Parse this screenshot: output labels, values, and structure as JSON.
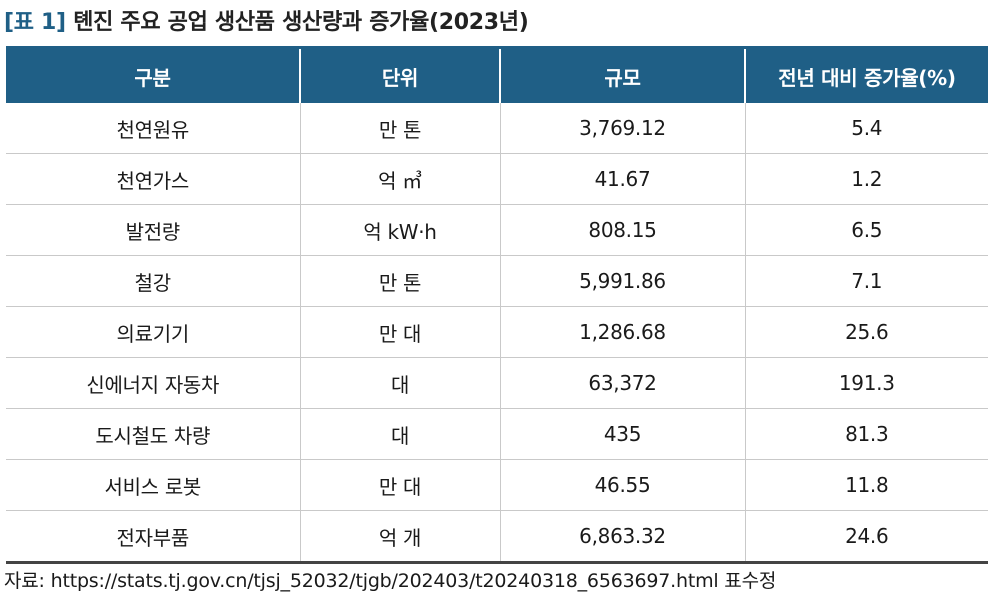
{
  "caption": {
    "label": "[표 1]",
    "title": "톈진 주요 공업 생산품 생산량과 증가율(2023년)"
  },
  "table": {
    "headers": [
      "구분",
      "단위",
      "규모",
      "전년 대비 증가율(%)"
    ],
    "rows": [
      [
        "천연원유",
        "만 톤",
        "3,769.12",
        "5.4"
      ],
      [
        "천연가스",
        "억 ㎥",
        "41.67",
        "1.2"
      ],
      [
        "발전량",
        "억 kW·h",
        "808.15",
        "6.5"
      ],
      [
        "철강",
        "만 톤",
        "5,991.86",
        "7.1"
      ],
      [
        "의료기기",
        "만 대",
        "1,286.68",
        "25.6"
      ],
      [
        "신에너지 자동차",
        "대",
        "63,372",
        "191.3"
      ],
      [
        "도시철도 차량",
        "대",
        "435",
        "81.3"
      ],
      [
        "서비스 로봇",
        "만 대",
        "46.55",
        "11.8"
      ],
      [
        "전자부품",
        "억 개",
        "6,863.32",
        "24.6"
      ]
    ]
  },
  "source": "자료: https://stats.tj.gov.cn/tjsj_52032/tjgb/202403/t20240318_6563697.html 표수정",
  "colors": {
    "header_bg": "#1f5f86",
    "header_text": "#ffffff",
    "grid": "#c9c9c9"
  }
}
